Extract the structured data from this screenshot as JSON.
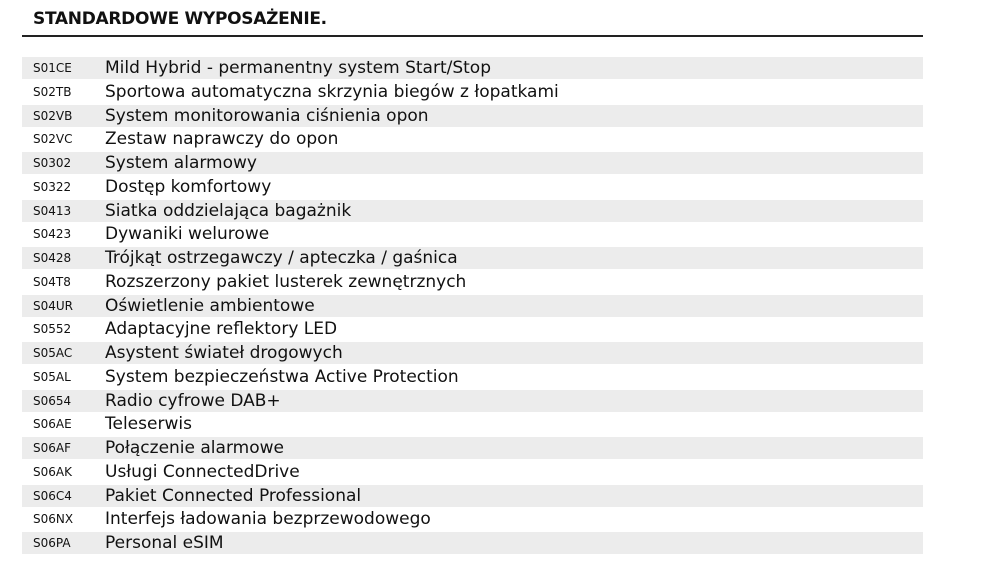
{
  "header": {
    "title": "STANDARDOWE WYPOSAŻENIE."
  },
  "table": {
    "rows": [
      [
        "S01CE",
        "Mild Hybrid - permanentny system Start/Stop"
      ],
      [
        "S02TB",
        "Sportowa automatyczna skrzynia biegów z łopatkami"
      ],
      [
        "S02VB",
        "System monitorowania ciśnienia opon"
      ],
      [
        "S02VC",
        "Zestaw naprawczy do opon"
      ],
      [
        "S0302",
        "System alarmowy"
      ],
      [
        "S0322",
        "Dostęp komfortowy"
      ],
      [
        "S0413",
        "Siatka oddzielająca bagażnik"
      ],
      [
        "S0423",
        "Dywaniki welurowe"
      ],
      [
        "S0428",
        "Trójkąt ostrzegawczy / apteczka / gaśnica"
      ],
      [
        "S04T8",
        "Rozszerzony pakiet lusterek zewnętrznych"
      ],
      [
        "S04UR",
        "Oświetlenie ambientowe"
      ],
      [
        "S0552",
        "Adaptacyjne reflektory LED"
      ],
      [
        "S05AC",
        "Asystent świateł drogowych"
      ],
      [
        "S05AL",
        "System bezpieczeństwa Active Protection"
      ],
      [
        "S0654",
        "Radio cyfrowe DAB+"
      ],
      [
        "S06AE",
        "Teleserwis"
      ],
      [
        "S06AF",
        "Połączenie alarmowe"
      ],
      [
        "S06AK",
        "Usługi ConnectedDrive"
      ],
      [
        "S06C4",
        "Pakiet Connected Professional"
      ],
      [
        "S06NX",
        "Interfejs ładowania bezprzewodowego"
      ],
      [
        "S06PA",
        "Personal eSIM"
      ]
    ]
  }
}
